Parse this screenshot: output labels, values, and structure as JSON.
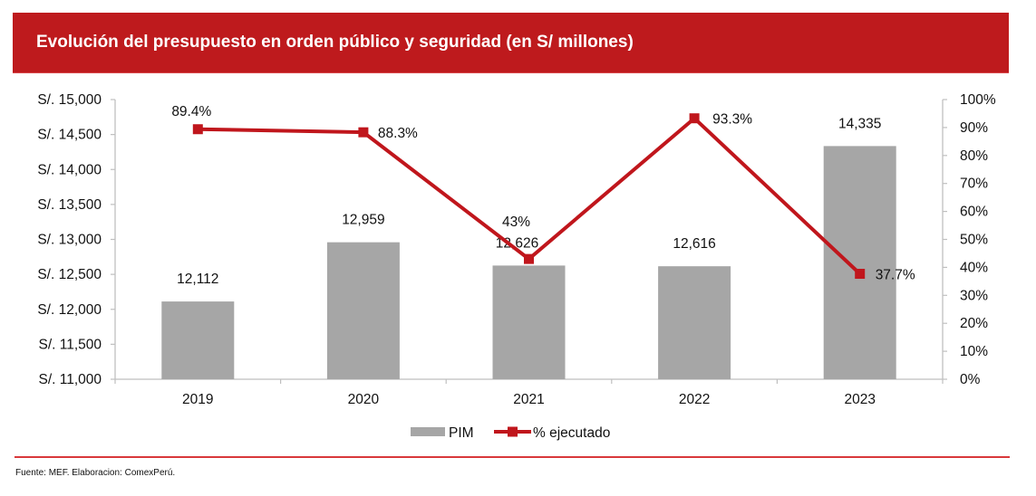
{
  "header": {
    "title": "Evolución del presupuesto en orden público y seguridad (en S/ millones)"
  },
  "footer": {
    "source": "Fuente: MEF. Elaboracion: ComexPerú."
  },
  "colors": {
    "title_bg": "#be1a1d",
    "bar": "#a6a6a6",
    "line": "#c0161c",
    "axis": "#bfbfbf"
  },
  "chart_data": {
    "type": "bar",
    "combo": "bar+line",
    "title": "Evolución del presupuesto en orden público y seguridad (en S/ millones)",
    "categories": [
      "2019",
      "2020",
      "2021",
      "2022",
      "2023"
    ],
    "series": [
      {
        "name": "PIM",
        "type": "bar",
        "axis": "left",
        "values": [
          12112,
          12959,
          12626,
          12616,
          14335
        ],
        "labels": [
          "12,112",
          "12,959",
          "12,626",
          "12,616",
          "14,335"
        ]
      },
      {
        "name": "% ejecutado",
        "type": "line",
        "axis": "right",
        "marker": "square",
        "values": [
          89.4,
          88.3,
          43,
          93.3,
          37.7
        ],
        "labels": [
          "89.4%",
          "88.3%",
          "43%",
          "93.3%",
          "37.7%"
        ]
      }
    ],
    "y_left": {
      "range": [
        11000,
        15000
      ],
      "ticks": [
        11000,
        11500,
        12000,
        12500,
        13000,
        13500,
        14000,
        14500,
        15000
      ],
      "tick_labels": [
        "S/. 11,000",
        "S/. 11,500",
        "S/. 12,000",
        "S/. 12,500",
        "S/. 13,000",
        "S/. 13,500",
        "S/. 14,000",
        "S/. 14,500",
        "S/. 15,000"
      ]
    },
    "y_right": {
      "range": [
        0,
        100
      ],
      "ticks": [
        0,
        10,
        20,
        30,
        40,
        50,
        60,
        70,
        80,
        90,
        100
      ],
      "tick_labels": [
        "0%",
        "10%",
        "20%",
        "30%",
        "40%",
        "50%",
        "60%",
        "70%",
        "80%",
        "90%",
        "100%"
      ]
    },
    "xlabel": "",
    "ylabel": "",
    "grid": false,
    "legend": {
      "placement": "bottom",
      "entries": [
        "PIM",
        "% ejecutado"
      ]
    }
  }
}
